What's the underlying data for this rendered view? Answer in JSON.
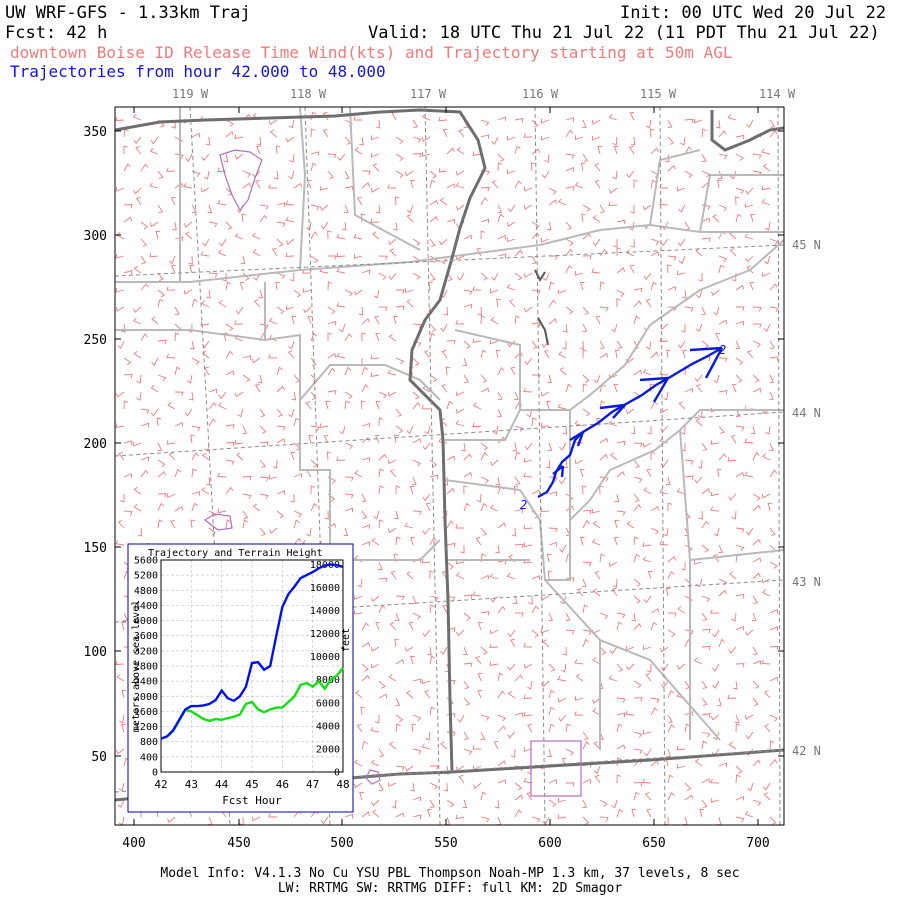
{
  "header": {
    "model_title": "UW WRF-GFS - 1.33km Traj",
    "init": "Init: 00 UTC Wed 20 Jul 22",
    "fcst": "Fcst:   42 h",
    "valid": "Valid: 18 UTC Thu 21 Jul 22 (11 PDT Thu 21 Jul 22)",
    "subtitle": "downtown Boise ID Release Time Wind(kts) and Trajectory starting at 50m AGL",
    "traj_hours": "Trajectories from hour  42.000 to  48.000"
  },
  "map": {
    "x_ticks": [
      "400",
      "450",
      "500",
      "550",
      "600",
      "650",
      "700"
    ],
    "y_ticks": [
      "50",
      "100",
      "150",
      "200",
      "250",
      "300",
      "350"
    ],
    "lon_labels": [
      "119 W",
      "118 W",
      "117 W",
      "116 W",
      "115 W",
      "114 W"
    ],
    "lat_labels": [
      "45 N",
      "44 N",
      "43 N",
      "42 N"
    ],
    "traj_start_label": "2",
    "traj_end_label": "2",
    "colors": {
      "wind_barbs": "#f07b7b",
      "trajectory": "#0a1ad8",
      "borders": "#777777",
      "counties": "#b9b9b9",
      "lat_lon": "#888888",
      "lakes": "#b070c0"
    }
  },
  "inset": {
    "title": "Trajectory and Terrain Height",
    "ylabel_left": "meters above sea level",
    "ylabel_right": "feet",
    "xlabel": "Fcst Hour",
    "left_ticks": [
      "5600",
      "5200",
      "4800",
      "4400",
      "4000",
      "3600",
      "3200",
      "2800",
      "2400",
      "2000",
      "1600",
      "1200",
      "800",
      "400",
      "0"
    ],
    "right_ticks": [
      "18000",
      "16000",
      "14000",
      "12000",
      "10000",
      "8000",
      "6000",
      "4000",
      "2000",
      "0"
    ],
    "x_ticks": [
      "42",
      "43",
      "44",
      "45",
      "46",
      "47",
      "48"
    ],
    "series": [
      {
        "name": "trajectory",
        "color": "#0010ee",
        "x": [
          42.0,
          42.2,
          42.4,
          42.6,
          42.8,
          43.0,
          43.2,
          43.4,
          43.6,
          43.8,
          44.0,
          44.2,
          44.4,
          44.6,
          44.8,
          45.0,
          45.2,
          45.4,
          45.6,
          45.8,
          46.0,
          46.2,
          46.4,
          46.6,
          46.8,
          47.0,
          47.2,
          47.4,
          47.6,
          47.8,
          48.0
        ],
        "y": [
          880,
          940,
          1100,
          1380,
          1650,
          1740,
          1740,
          1760,
          1800,
          1900,
          2150,
          1950,
          1880,
          2000,
          2250,
          2880,
          2900,
          2700,
          2800,
          3600,
          4350,
          4700,
          4900,
          5120,
          5200,
          5280,
          5380,
          5450,
          5480,
          5460,
          5420
        ]
      },
      {
        "name": "terrain",
        "color": "#10e010",
        "x": [
          42.0,
          42.2,
          42.4,
          42.6,
          42.8,
          43.0,
          43.2,
          43.4,
          43.6,
          43.8,
          44.0,
          44.2,
          44.4,
          44.6,
          44.8,
          45.0,
          45.2,
          45.4,
          45.6,
          45.8,
          46.0,
          46.2,
          46.4,
          46.6,
          46.8,
          47.0,
          47.2,
          47.4,
          47.6,
          47.8,
          48.0
        ],
        "y": [
          880,
          940,
          1080,
          1360,
          1640,
          1600,
          1500,
          1400,
          1350,
          1400,
          1380,
          1420,
          1460,
          1520,
          1800,
          1850,
          1650,
          1580,
          1650,
          1700,
          1700,
          1850,
          2000,
          2300,
          2350,
          2250,
          2400,
          2200,
          2450,
          2550,
          2750
        ]
      }
    ]
  },
  "footer": {
    "line1": "Model Info: V4.1.3    No Cu   YSU PBL  Thompson    Noah-MP   1.3 km,  37 levels,    8 sec",
    "line2": "LW: RRTMG SW: RRTMG    DIFF: full    KM: 2D Smagor"
  }
}
